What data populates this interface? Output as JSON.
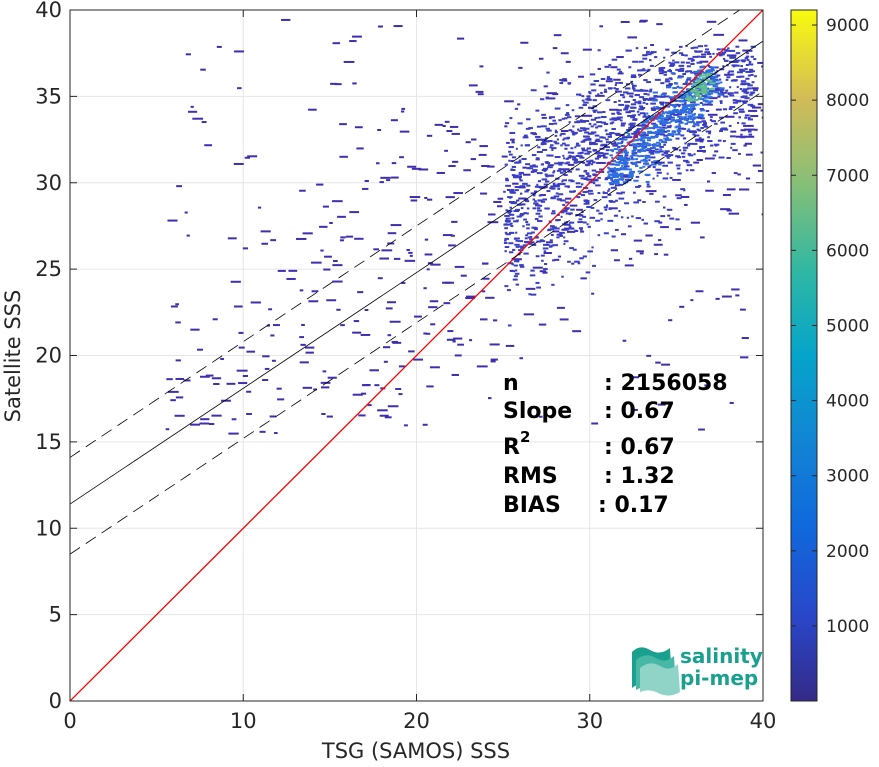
{
  "chart_data": {
    "type": "heatmap",
    "title": "",
    "xlabel": "TSG (SAMOS) SSS",
    "ylabel": "Satellite SSS",
    "xlim": [
      0,
      40
    ],
    "ylim": [
      0,
      40
    ],
    "x_ticks": [
      0,
      10,
      20,
      30,
      40
    ],
    "y_ticks": [
      0,
      5,
      10,
      15,
      20,
      25,
      30,
      35,
      40
    ],
    "grid": true,
    "colorbar": {
      "colormap": "parula",
      "range": [
        1,
        9200
      ],
      "ticks": [
        1000,
        2000,
        3000,
        4000,
        5000,
        6000,
        7000,
        8000,
        9000
      ]
    },
    "lines": [
      {
        "name": "one-to-one",
        "slope": 1,
        "intercept": 0,
        "color": "#ff0000",
        "style": "solid"
      },
      {
        "name": "regression",
        "slope": 0.67,
        "intercept": 11.4,
        "color": "#000000",
        "style": "solid"
      },
      {
        "name": "regression-plus-2rms",
        "slope": 0.67,
        "intercept": 14.1,
        "color": "#000000",
        "style": "dashed"
      },
      {
        "name": "regression-minus-2rms",
        "slope": 0.67,
        "intercept": 8.5,
        "color": "#000000",
        "style": "dashed"
      }
    ],
    "density_regions": [
      {
        "x_range": [
          5.5,
          40
        ],
        "y_range": [
          15.5,
          39.5
        ],
        "level": "sparse"
      },
      {
        "x_range": [
          25,
          39.5
        ],
        "y_range": [
          20,
          38
        ],
        "level": "moderate"
      },
      {
        "x_range": [
          31,
          37.5
        ],
        "y_range": [
          30,
          36.8
        ],
        "level": "high"
      },
      {
        "x_range": [
          35.5,
          37
        ],
        "y_range": [
          34.8,
          36.5
        ],
        "level": "peak"
      }
    ],
    "stats": {
      "n": "2156058",
      "slope": "0.67",
      "r2": "0.67",
      "rms": "1.32",
      "bias": "0.17"
    }
  },
  "stats_labels": {
    "n_label": "n",
    "n_value": ": 2156058",
    "slope_label": "Slope",
    "slope_value": ": 0.67",
    "r_label": "R",
    "r_sup": "2",
    "r_value": ": 0.67",
    "rms_label": "RMS",
    "rms_value": ": 1.32",
    "bias_label": "BIAS",
    "bias_value": ": 0.17"
  },
  "logo": {
    "line1": "salinity",
    "line2": "pi-mep"
  },
  "colors": {
    "one_to_one": "#ff0000",
    "regression": "#000000",
    "logo": "#1aa08e",
    "background": "#ffffff"
  }
}
